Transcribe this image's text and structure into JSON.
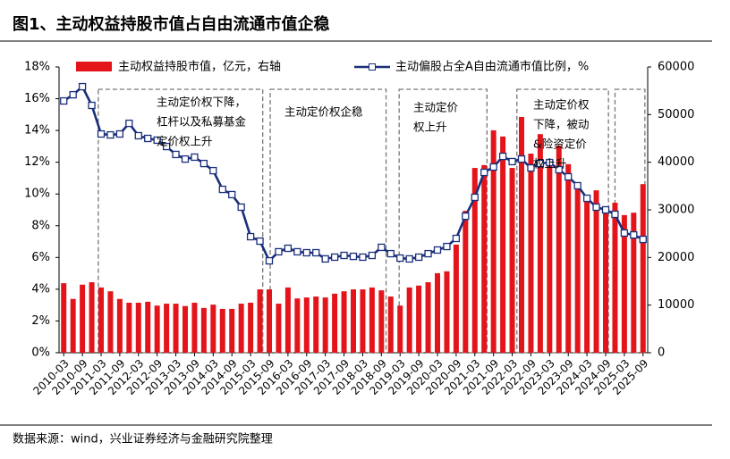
{
  "chart_data": {
    "type": "bar_line",
    "title": "图1、主动权益持股市值占自由流通市值企稳",
    "source": "数据来源：wind，兴业证券经济与金融研究院整理",
    "categories": [
      "2010-03",
      null,
      "2010-09",
      null,
      "2011-03",
      null,
      "2011-09",
      null,
      "2012-03",
      null,
      "2012-09",
      null,
      "2013-03",
      null,
      "2013-09",
      null,
      "2014-03",
      null,
      "2014-09",
      null,
      "2015-03",
      null,
      "2015-09",
      null,
      "2016-03",
      null,
      "2016-09",
      null,
      "2017-03",
      null,
      "2017-09",
      null,
      "2018-03",
      null,
      "2018-09",
      null,
      "2019-03",
      null,
      "2019-09",
      null,
      "2020-03",
      null,
      "2020-09",
      null,
      "2021-03",
      null,
      "2021-09",
      null,
      "2022-03",
      null,
      "2022-09",
      null,
      "2023-03",
      null,
      "2023-09",
      null,
      "2024-03",
      null,
      "2024-09",
      null,
      "2025-03",
      null,
      "2025-09"
    ],
    "series": [
      {
        "name": "主动权益持股市值，亿元，右轴",
        "type": "bar",
        "axis": "y2",
        "color": "#e3151b",
        "values": [
          14600,
          11300,
          14300,
          14800,
          13700,
          12900,
          11300,
          10500,
          10500,
          10700,
          9900,
          10300,
          10300,
          9800,
          10500,
          9400,
          10100,
          9200,
          9200,
          10300,
          10500,
          13300,
          13300,
          10300,
          13700,
          11400,
          11600,
          11800,
          11600,
          12400,
          12900,
          13300,
          13300,
          13700,
          13100,
          11800,
          9900,
          13700,
          14100,
          14800,
          16700,
          17100,
          22700,
          29800,
          38800,
          39400,
          46700,
          45400,
          38800,
          49500,
          41800,
          45900,
          40100,
          43500,
          39600,
          35300,
          33000,
          34100,
          30600,
          31500,
          28900,
          29400,
          35400
        ]
      },
      {
        "name": "主动偏股占全A自由流通市值比例，%",
        "type": "line",
        "axis": "y",
        "color": "#1a2f7a",
        "values": [
          15.86,
          16.25,
          16.76,
          15.58,
          13.78,
          13.72,
          13.78,
          14.45,
          13.67,
          13.5,
          13.39,
          12.99,
          12.49,
          12.2,
          12.32,
          11.92,
          11.47,
          10.29,
          9.96,
          9.17,
          7.31,
          7.03,
          5.79,
          6.36,
          6.58,
          6.36,
          6.3,
          6.3,
          5.91,
          6.02,
          6.13,
          6.07,
          6.02,
          6.13,
          6.64,
          6.24,
          5.96,
          5.91,
          6.02,
          6.24,
          6.47,
          6.69,
          7.2,
          8.6,
          9.79,
          11.36,
          11.7,
          12.37,
          12.04,
          12.2,
          11.64,
          11.92,
          11.98,
          11.53,
          11.08,
          10.52,
          9.73,
          9.17,
          9.0,
          8.72,
          7.54,
          7.42,
          7.14
        ]
      }
    ],
    "ylim": [
      0,
      18
    ],
    "yticks": [
      {
        "value": 0,
        "label": "0%"
      },
      {
        "value": 2,
        "label": "2%"
      },
      {
        "value": 4,
        "label": "4%"
      },
      {
        "value": 6,
        "label": "6%"
      },
      {
        "value": 8,
        "label": "8%"
      },
      {
        "value": 10,
        "label": "10%"
      },
      {
        "value": 12,
        "label": "12%"
      },
      {
        "value": 14,
        "label": "14%"
      },
      {
        "value": 16,
        "label": "16%"
      },
      {
        "value": 18,
        "label": "18%"
      }
    ],
    "y2lim": [
      0,
      60000
    ],
    "y2ticks": [
      0,
      10000,
      20000,
      30000,
      40000,
      50000,
      60000
    ],
    "annotations": [
      {
        "lines": [
          "主动定价权下降，",
          "杠杆以及私募基金",
          "定价权上升"
        ]
      },
      {
        "lines": [
          "主动定价权企稳"
        ]
      },
      {
        "lines": [
          "主动定价",
          "权上升"
        ]
      },
      {
        "lines": [
          "主动定价权",
          "下降，被动",
          "&险资定价",
          "权上升"
        ]
      }
    ]
  }
}
